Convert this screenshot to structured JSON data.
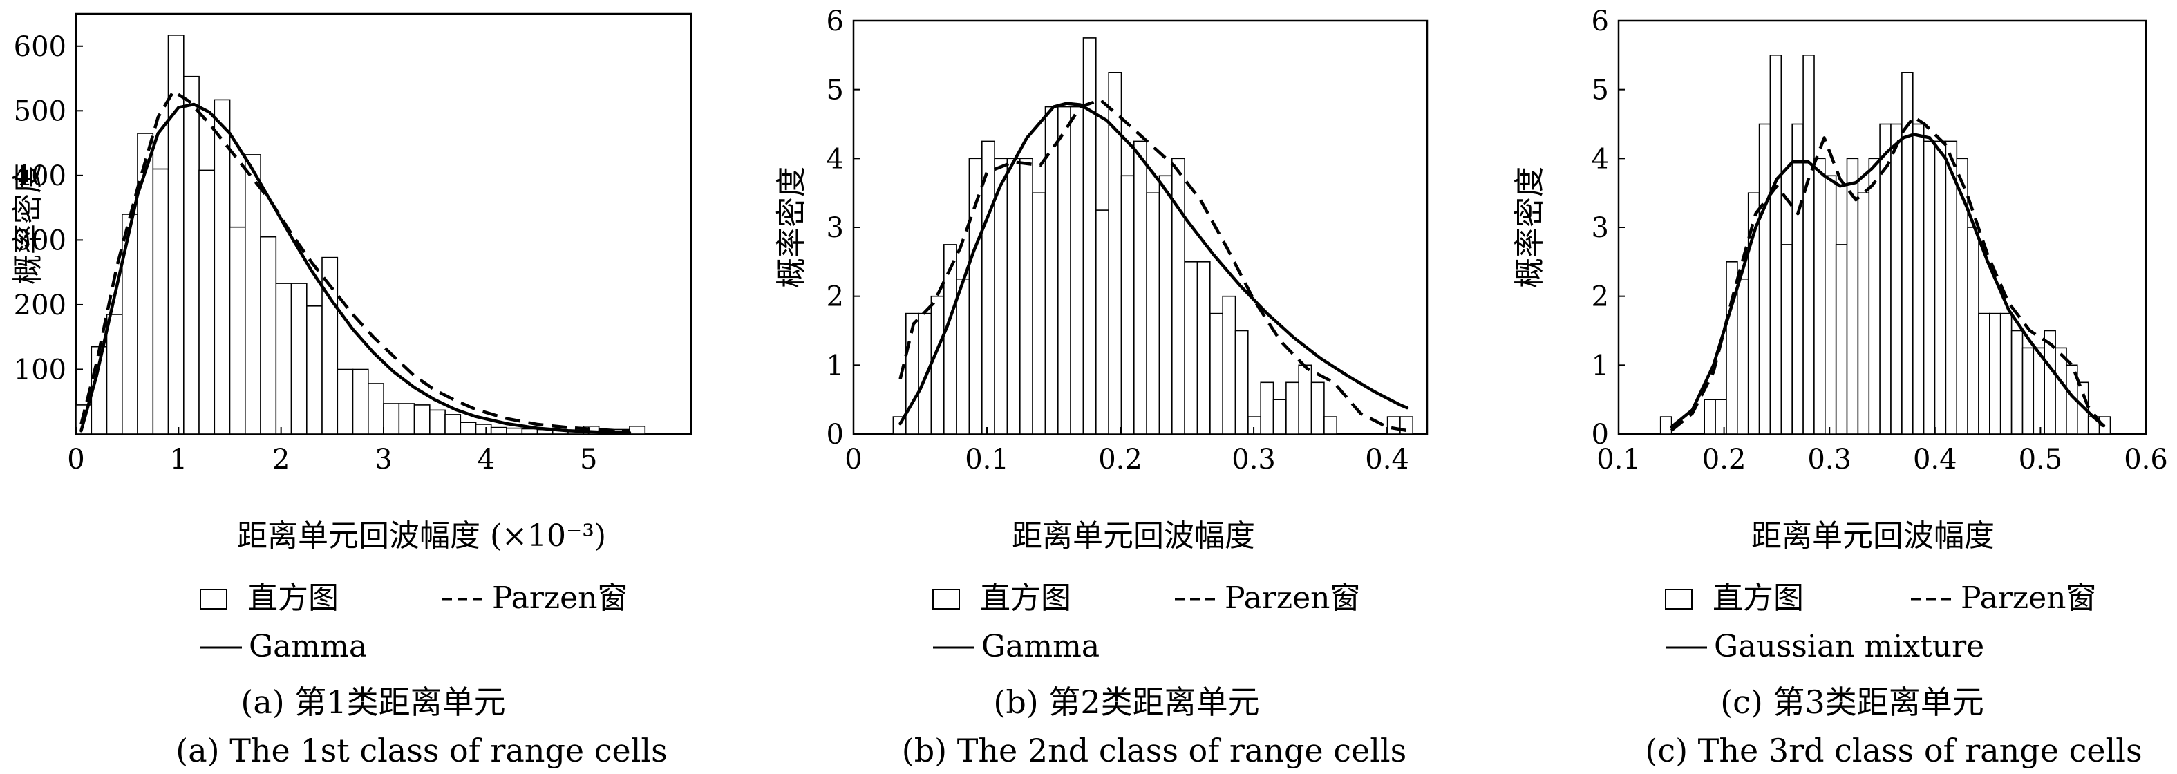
{
  "chart_data": [
    {
      "type": "bar",
      "panel": "a",
      "ylabel": "概率密度",
      "xlabel": "距离单元回波幅度 (×10⁻³)",
      "xlim": [
        0,
        6
      ],
      "ylim": [
        0,
        650
      ],
      "xticks": [
        "0",
        "1",
        "2",
        "3",
        "4",
        "5"
      ],
      "yticks": [
        "100",
        "200",
        "300",
        "400",
        "500",
        "600"
      ],
      "histogram": {
        "name": "直方图",
        "bin_width": 0.15,
        "bin_centers": [
          0.075,
          0.225,
          0.375,
          0.525,
          0.675,
          0.825,
          0.975,
          1.125,
          1.275,
          1.425,
          1.575,
          1.725,
          1.875,
          2.025,
          2.175,
          2.325,
          2.475,
          2.625,
          2.775,
          2.925,
          3.075,
          3.225,
          3.375,
          3.525,
          3.675,
          3.825,
          3.975,
          4.125,
          4.275,
          4.425,
          4.575,
          4.725,
          4.875,
          5.025,
          5.175,
          5.325,
          5.475
        ],
        "values": [
          45,
          135,
          185,
          340,
          465,
          410,
          617,
          553,
          408,
          517,
          320,
          432,
          305,
          233,
          233,
          198,
          273,
          100,
          100,
          78,
          47,
          47,
          45,
          37,
          30,
          18,
          15,
          10,
          9,
          8,
          7,
          6,
          5,
          12,
          5,
          7,
          12
        ]
      },
      "series": [
        {
          "name": "Parzen窗",
          "style": "dashed",
          "x": [
            0.05,
            0.2,
            0.4,
            0.6,
            0.8,
            0.95,
            1.1,
            1.3,
            1.5,
            1.7,
            1.9,
            2.1,
            2.3,
            2.5,
            2.7,
            2.9,
            3.1,
            3.3,
            3.5,
            3.7,
            3.9,
            4.2,
            4.5,
            4.8,
            5.1,
            5.4
          ],
          "y": [
            15,
            110,
            260,
            380,
            490,
            530,
            515,
            480,
            440,
            400,
            360,
            310,
            265,
            225,
            185,
            150,
            120,
            90,
            68,
            52,
            38,
            24,
            15,
            10,
            7,
            4
          ]
        },
        {
          "name": "Gamma",
          "style": "solid",
          "x": [
            0.05,
            0.2,
            0.4,
            0.6,
            0.8,
            1.0,
            1.15,
            1.3,
            1.5,
            1.7,
            1.9,
            2.1,
            2.3,
            2.5,
            2.7,
            2.9,
            3.1,
            3.3,
            3.5,
            3.7,
            3.9,
            4.2,
            4.5,
            4.8,
            5.1,
            5.4
          ],
          "y": [
            5,
            90,
            230,
            370,
            465,
            505,
            510,
            498,
            465,
            415,
            360,
            305,
            252,
            205,
            162,
            126,
            96,
            72,
            53,
            38,
            27,
            16,
            9,
            5,
            3,
            2
          ]
        }
      ],
      "legend": [
        "直方图",
        "Parzen窗",
        "Gamma"
      ],
      "caption_cn": "(a) 第1类距离单元",
      "caption_en": "(a) The 1st class of range cells"
    },
    {
      "type": "bar",
      "panel": "b",
      "ylabel": "概率密度",
      "xlabel": "距离单元回波幅度",
      "xlim": [
        0,
        0.43
      ],
      "ylim": [
        0,
        6
      ],
      "xticks": [
        "0",
        "0.1",
        "0.2",
        "0.3",
        "0.4"
      ],
      "yticks": [
        "0",
        "1",
        "2",
        "3",
        "4",
        "5",
        "6"
      ],
      "histogram": {
        "name": "直方图",
        "bin_width": 0.0095,
        "bin_centers": [
          0.0345,
          0.044,
          0.0535,
          0.063,
          0.0725,
          0.082,
          0.0915,
          0.101,
          0.1105,
          0.12,
          0.1295,
          0.139,
          0.1485,
          0.158,
          0.1675,
          0.177,
          0.1865,
          0.196,
          0.2055,
          0.215,
          0.2245,
          0.234,
          0.2435,
          0.253,
          0.2625,
          0.272,
          0.2815,
          0.291,
          0.3005,
          0.31,
          0.3195,
          0.329,
          0.3385,
          0.348,
          0.3575,
          0.367,
          0.3765,
          0.386,
          0.3955,
          0.405,
          0.4145
        ],
        "values": [
          0.25,
          1.75,
          1.75,
          2.0,
          2.75,
          2.25,
          4.0,
          4.25,
          4.0,
          4.0,
          4.0,
          3.5,
          4.75,
          4.75,
          4.75,
          5.75,
          3.25,
          5.25,
          3.75,
          4.25,
          3.5,
          3.75,
          4.0,
          2.5,
          2.5,
          1.75,
          2.0,
          1.5,
          0.25,
          0.75,
          0.5,
          0.75,
          1.0,
          0.75,
          0.25,
          0.0,
          0.0,
          0.0,
          0.0,
          0.25,
          0.25
        ]
      },
      "series": [
        {
          "name": "Parzen窗",
          "style": "dashed",
          "x": [
            0.035,
            0.045,
            0.06,
            0.08,
            0.1,
            0.12,
            0.14,
            0.155,
            0.17,
            0.185,
            0.2,
            0.22,
            0.24,
            0.26,
            0.28,
            0.3,
            0.32,
            0.34,
            0.36,
            0.38,
            0.4,
            0.415
          ],
          "y": [
            0.8,
            1.6,
            1.9,
            2.7,
            3.8,
            3.95,
            3.9,
            4.3,
            4.75,
            4.85,
            4.6,
            4.25,
            3.9,
            3.4,
            2.7,
            1.95,
            1.35,
            0.95,
            0.75,
            0.3,
            0.1,
            0.05
          ]
        },
        {
          "name": "Gamma",
          "style": "solid",
          "x": [
            0.035,
            0.05,
            0.07,
            0.09,
            0.11,
            0.13,
            0.15,
            0.16,
            0.17,
            0.19,
            0.21,
            0.23,
            0.25,
            0.27,
            0.29,
            0.31,
            0.33,
            0.35,
            0.37,
            0.39,
            0.41,
            0.415
          ],
          "y": [
            0.15,
            0.65,
            1.55,
            2.65,
            3.6,
            4.3,
            4.75,
            4.8,
            4.78,
            4.55,
            4.15,
            3.65,
            3.1,
            2.6,
            2.15,
            1.75,
            1.4,
            1.1,
            0.85,
            0.62,
            0.42,
            0.38
          ]
        }
      ],
      "legend": [
        "直方图",
        "Parzen窗",
        "Gamma"
      ],
      "caption_cn": "(b) 第2类距离单元",
      "caption_en": "(b) The 2nd class of range cells"
    },
    {
      "type": "bar",
      "panel": "c",
      "ylabel": "概率密度",
      "xlabel": "距离单元回波幅度",
      "xlim": [
        0.1,
        0.6
      ],
      "ylim": [
        0,
        6
      ],
      "xticks": [
        "0.1",
        "0.2",
        "0.3",
        "0.4",
        "0.5",
        "0.6"
      ],
      "yticks": [
        "0",
        "1",
        "2",
        "3",
        "4",
        "5",
        "6"
      ],
      "histogram": {
        "name": "直方图",
        "bin_width": 0.0104,
        "bin_centers": [
          0.145,
          0.1554,
          0.1658,
          0.1762,
          0.1866,
          0.197,
          0.2074,
          0.2178,
          0.2282,
          0.2386,
          0.249,
          0.2594,
          0.2698,
          0.2802,
          0.2906,
          0.301,
          0.3114,
          0.3218,
          0.3322,
          0.3426,
          0.353,
          0.3634,
          0.3738,
          0.3842,
          0.3946,
          0.405,
          0.4154,
          0.4258,
          0.4362,
          0.4466,
          0.457,
          0.4674,
          0.4778,
          0.4882,
          0.4986,
          0.509,
          0.5194,
          0.5298,
          0.5402,
          0.5506,
          0.561
        ],
        "values": [
          0.25,
          0.0,
          0.0,
          0.0,
          0.5,
          0.5,
          2.5,
          2.25,
          3.5,
          4.5,
          5.5,
          2.75,
          4.5,
          5.5,
          4.0,
          3.75,
          2.75,
          4.0,
          3.5,
          4.0,
          4.5,
          4.5,
          5.25,
          4.5,
          4.25,
          4.25,
          4.25,
          4.0,
          3.0,
          1.75,
          1.75,
          1.75,
          1.5,
          1.25,
          1.25,
          1.5,
          1.25,
          1.0,
          0.75,
          0.25,
          0.25
        ]
      },
      "series": [
        {
          "name": "Parzen窗",
          "style": "dashed",
          "x": [
            0.15,
            0.17,
            0.19,
            0.21,
            0.23,
            0.25,
            0.27,
            0.28,
            0.295,
            0.31,
            0.325,
            0.34,
            0.355,
            0.37,
            0.38,
            0.39,
            0.41,
            0.43,
            0.45,
            0.47,
            0.49,
            0.51,
            0.53,
            0.545,
            0.56
          ],
          "y": [
            0.05,
            0.3,
            0.9,
            2.1,
            3.2,
            3.6,
            3.2,
            3.7,
            4.3,
            3.7,
            3.4,
            3.6,
            3.9,
            4.4,
            4.6,
            4.5,
            4.2,
            3.5,
            2.6,
            1.9,
            1.5,
            1.3,
            1.0,
            0.4,
            0.1
          ]
        },
        {
          "name": "Gaussian mixture",
          "style": "solid",
          "x": [
            0.15,
            0.17,
            0.19,
            0.21,
            0.23,
            0.25,
            0.265,
            0.28,
            0.295,
            0.31,
            0.325,
            0.34,
            0.355,
            0.37,
            0.38,
            0.395,
            0.41,
            0.43,
            0.45,
            0.47,
            0.49,
            0.51,
            0.53,
            0.55,
            0.56
          ],
          "y": [
            0.1,
            0.35,
            1.0,
            2.0,
            3.0,
            3.7,
            3.95,
            3.95,
            3.75,
            3.6,
            3.65,
            3.85,
            4.1,
            4.3,
            4.35,
            4.3,
            4.0,
            3.3,
            2.5,
            1.8,
            1.35,
            0.95,
            0.55,
            0.25,
            0.12
          ]
        }
      ],
      "legend": [
        "直方图",
        "Parzen窗",
        "Gaussian mixture"
      ],
      "caption_cn": "(c) 第3类距离单元",
      "caption_en": "(c) The 3rd class of range cells"
    }
  ]
}
